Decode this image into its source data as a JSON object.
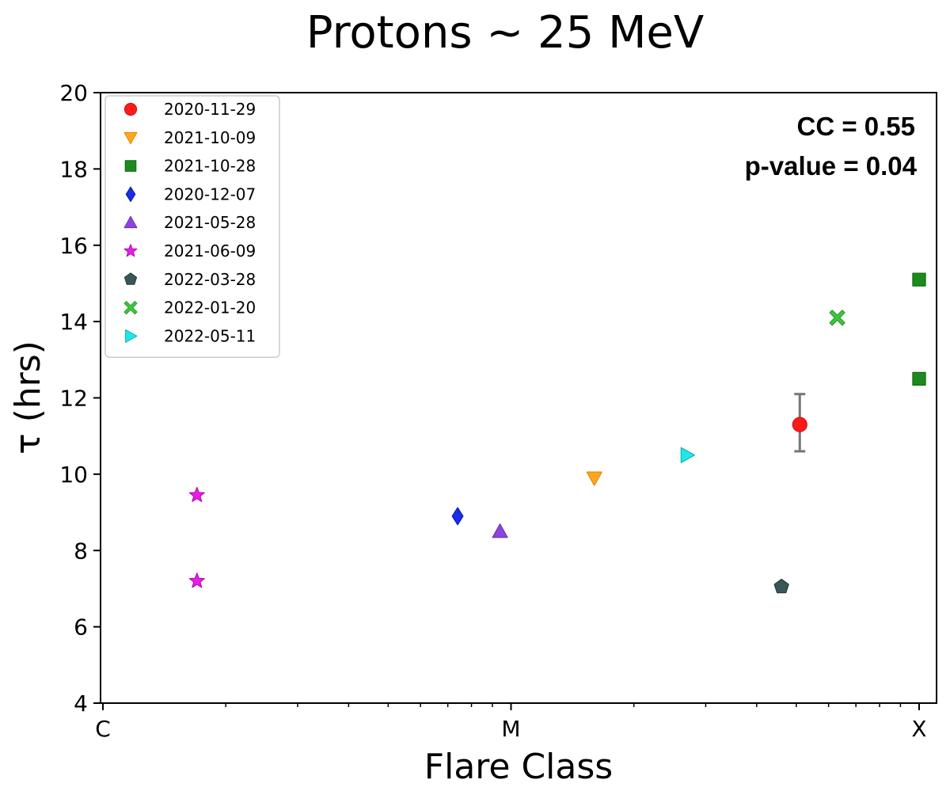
{
  "chart_data": {
    "type": "scatter",
    "title": "Protons ~ 25 MeV",
    "xlabel": "Flare Class",
    "ylabel": "τ (hrs)",
    "xscale": "log",
    "xlim": [
      1e-06,
      0.0001
    ],
    "ylim": [
      4,
      20
    ],
    "x_ticks": [
      {
        "value": 1e-06,
        "label": "C"
      },
      {
        "value": 1e-05,
        "label": "M"
      },
      {
        "value": 0.0001,
        "label": "X"
      }
    ],
    "y_ticks": [
      4,
      6,
      8,
      10,
      12,
      14,
      16,
      18,
      20
    ],
    "legend_position": "top-left",
    "annotation": {
      "cc": "CC = 0.55",
      "pvalue": "p-value = 0.04"
    },
    "series": [
      {
        "name": "2020-11-29",
        "marker": "circle",
        "color": "#ff1a1a",
        "edge": "#d01010",
        "points": [
          {
            "x": 5.1e-05,
            "y": 11.3,
            "yerr": [
              0.7,
              0.8
            ]
          }
        ]
      },
      {
        "name": "2021-10-09",
        "marker": "triangle-down",
        "color": "#ffa51f",
        "edge": "#e08a00",
        "points": [
          {
            "x": 1.6e-05,
            "y": 9.9
          }
        ]
      },
      {
        "name": "2021-10-28",
        "marker": "square",
        "color": "#1e8a1e",
        "edge": "#0b6a0b",
        "points": [
          {
            "x": 0.0001,
            "y": 15.1
          },
          {
            "x": 0.0001,
            "y": 12.5
          }
        ]
      },
      {
        "name": "2020-12-07",
        "marker": "diamond",
        "color": "#1a2ee8",
        "edge": "#0a18a0",
        "points": [
          {
            "x": 7.4e-06,
            "y": 8.9
          }
        ]
      },
      {
        "name": "2021-05-28",
        "marker": "triangle-up",
        "color": "#8e44dd",
        "edge": "#6f2fb8",
        "points": [
          {
            "x": 9.4e-06,
            "y": 8.5
          }
        ]
      },
      {
        "name": "2021-06-09",
        "marker": "star",
        "color": "#e61ee6",
        "edge": "#b010b0",
        "points": [
          {
            "x": 1.7e-06,
            "y": 9.45
          },
          {
            "x": 1.7e-06,
            "y": 7.2
          }
        ]
      },
      {
        "name": "2022-03-28",
        "marker": "pentagon",
        "color": "#3a5656",
        "edge": "#243838",
        "points": [
          {
            "x": 4.6e-05,
            "y": 7.05
          }
        ]
      },
      {
        "name": "2022-01-20",
        "marker": "x-thick",
        "color": "#3cc83c",
        "edge": "#2a9a2a",
        "points": [
          {
            "x": 6.3e-05,
            "y": 14.1
          }
        ]
      },
      {
        "name": "2022-05-11",
        "marker": "triangle-right",
        "color": "#1ee8e8",
        "edge": "#10b0b0",
        "points": [
          {
            "x": 2.7e-05,
            "y": 10.5
          }
        ]
      }
    ]
  }
}
